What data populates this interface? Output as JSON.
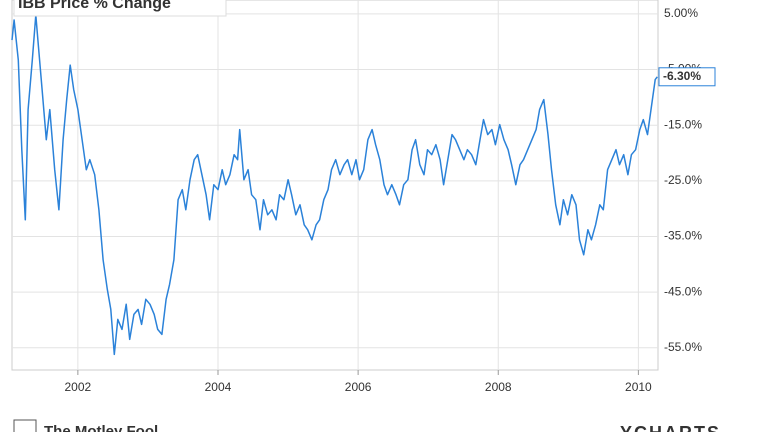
{
  "chart_data": {
    "type": "line",
    "title": "IBB Price % Change",
    "x": [
      2001.06,
      2001.09,
      2001.15,
      2001.2,
      2001.25,
      2001.29,
      2001.35,
      2001.4,
      2001.43,
      2001.49,
      2001.55,
      2001.6,
      2001.67,
      2001.73,
      2001.79,
      2001.84,
      2001.89,
      2001.94,
      2002.0,
      2002.06,
      2002.12,
      2002.17,
      2002.24,
      2002.3,
      2002.36,
      2002.42,
      2002.47,
      2002.52,
      2002.57,
      2002.63,
      2002.69,
      2002.74,
      2002.8,
      2002.86,
      2002.91,
      2002.97,
      2003.03,
      2003.09,
      2003.14,
      2003.2,
      2003.26,
      2003.31,
      2003.37,
      2003.43,
      2003.49,
      2003.54,
      2003.6,
      2003.66,
      2003.71,
      2003.77,
      2003.83,
      2003.88,
      2003.94,
      2004.0,
      2004.06,
      2004.11,
      2004.17,
      2004.23,
      2004.28,
      2004.31,
      2004.37,
      2004.43,
      2004.48,
      2004.54,
      2004.6,
      2004.65,
      2004.71,
      2004.77,
      2004.83,
      2004.88,
      2004.94,
      2005.0,
      2005.05,
      2005.11,
      2005.17,
      2005.23,
      2005.28,
      2005.34,
      2005.4,
      2005.45,
      2005.51,
      2005.57,
      2005.62,
      2005.68,
      2005.74,
      2005.8,
      2005.85,
      2005.91,
      2005.97,
      2006.02,
      2006.08,
      2006.14,
      2006.2,
      2006.25,
      2006.31,
      2006.37,
      2006.42,
      2006.48,
      2006.54,
      2006.59,
      2006.65,
      2006.71,
      2006.77,
      2006.82,
      2006.88,
      2006.94,
      2006.99,
      2007.05,
      2007.11,
      2007.17,
      2007.22,
      2007.28,
      2007.34,
      2007.39,
      2007.45,
      2007.51,
      2007.56,
      2007.62,
      2007.68,
      2007.74,
      2007.79,
      2007.85,
      2007.91,
      2007.96,
      2008.02,
      2008.08,
      2008.14,
      2008.19,
      2008.25,
      2008.31,
      2008.36,
      2008.42,
      2008.48,
      2008.54,
      2008.59,
      2008.65,
      2008.71,
      2008.76,
      2008.82,
      2008.88,
      2008.93,
      2008.99,
      2009.05,
      2009.11,
      2009.16,
      2009.22,
      2009.28,
      2009.33,
      2009.39,
      2009.45,
      2009.5,
      2009.56,
      2009.62,
      2009.68,
      2009.73,
      2009.79,
      2009.85,
      2009.9,
      2009.96,
      2010.02,
      2010.07,
      2010.13,
      2010.19,
      2010.24,
      2010.27
    ],
    "series": [
      {
        "name": "IBB Price % Change",
        "color": "#2b82d9",
        "values": [
          0.3,
          3.9,
          -3.3,
          -19.4,
          -32.0,
          -12.2,
          -3.3,
          4.8,
          0.3,
          -8.6,
          -17.6,
          -12.2,
          -23.0,
          -30.2,
          -17.6,
          -10.4,
          -4.2,
          -8.6,
          -12.2,
          -17.6,
          -23.0,
          -21.2,
          -23.9,
          -30.2,
          -39.2,
          -44.5,
          -48.1,
          -56.2,
          -49.9,
          -51.7,
          -47.2,
          -53.5,
          -49.0,
          -48.1,
          -50.8,
          -46.3,
          -47.2,
          -49.0,
          -51.7,
          -52.6,
          -46.3,
          -43.6,
          -39.2,
          -28.4,
          -26.6,
          -30.2,
          -24.8,
          -21.2,
          -20.3,
          -23.9,
          -27.5,
          -32.0,
          -25.7,
          -26.6,
          -23.0,
          -25.7,
          -23.9,
          -20.3,
          -21.2,
          -15.8,
          -24.8,
          -23.0,
          -27.5,
          -28.4,
          -33.8,
          -28.4,
          -31.1,
          -30.2,
          -32.0,
          -27.5,
          -28.4,
          -24.8,
          -27.5,
          -31.1,
          -29.3,
          -32.9,
          -33.8,
          -35.6,
          -32.9,
          -32.0,
          -28.4,
          -26.6,
          -23.0,
          -21.2,
          -23.9,
          -22.1,
          -21.2,
          -23.9,
          -21.2,
          -24.8,
          -23.0,
          -17.6,
          -15.8,
          -18.5,
          -21.2,
          -25.7,
          -27.5,
          -25.7,
          -27.5,
          -29.3,
          -25.7,
          -24.8,
          -19.4,
          -17.6,
          -22.1,
          -23.9,
          -19.4,
          -20.3,
          -18.5,
          -21.2,
          -25.7,
          -21.2,
          -16.7,
          -17.6,
          -19.4,
          -21.2,
          -19.4,
          -20.3,
          -22.1,
          -17.6,
          -14.0,
          -16.7,
          -15.8,
          -18.5,
          -14.9,
          -17.6,
          -19.4,
          -22.1,
          -25.7,
          -22.1,
          -21.2,
          -19.4,
          -17.6,
          -15.8,
          -12.2,
          -10.4,
          -16.7,
          -23.0,
          -29.3,
          -32.9,
          -28.4,
          -31.1,
          -27.5,
          -29.3,
          -35.6,
          -38.3,
          -33.8,
          -35.6,
          -32.9,
          -29.3,
          -30.2,
          -23.0,
          -21.2,
          -19.4,
          -22.1,
          -20.3,
          -23.9,
          -20.3,
          -19.4,
          -15.8,
          -14.0,
          -16.7,
          -11.3,
          -6.8,
          -6.3
        ],
        "end_label": "-6.30%"
      }
    ],
    "xlim": [
      2001.06,
      2010.28
    ],
    "xticks": [
      2002,
      2004,
      2006,
      2008,
      2010
    ],
    "ylim": [
      -59,
      7.5
    ],
    "yticks": [
      {
        "value": 5,
        "label": "5.00%"
      },
      {
        "value": -5,
        "label": "-5.00%"
      },
      {
        "value": -15,
        "label": "-15.0%"
      },
      {
        "value": -25,
        "label": "-25.0%"
      },
      {
        "value": -35,
        "label": "-35.0%"
      },
      {
        "value": -45,
        "label": "-45.0%"
      },
      {
        "value": -55,
        "label": "-55.0%"
      }
    ],
    "grid": true,
    "y_axis_side": "right",
    "footer_left": "The Motley Fool",
    "footer_right": "YCHARTS"
  }
}
